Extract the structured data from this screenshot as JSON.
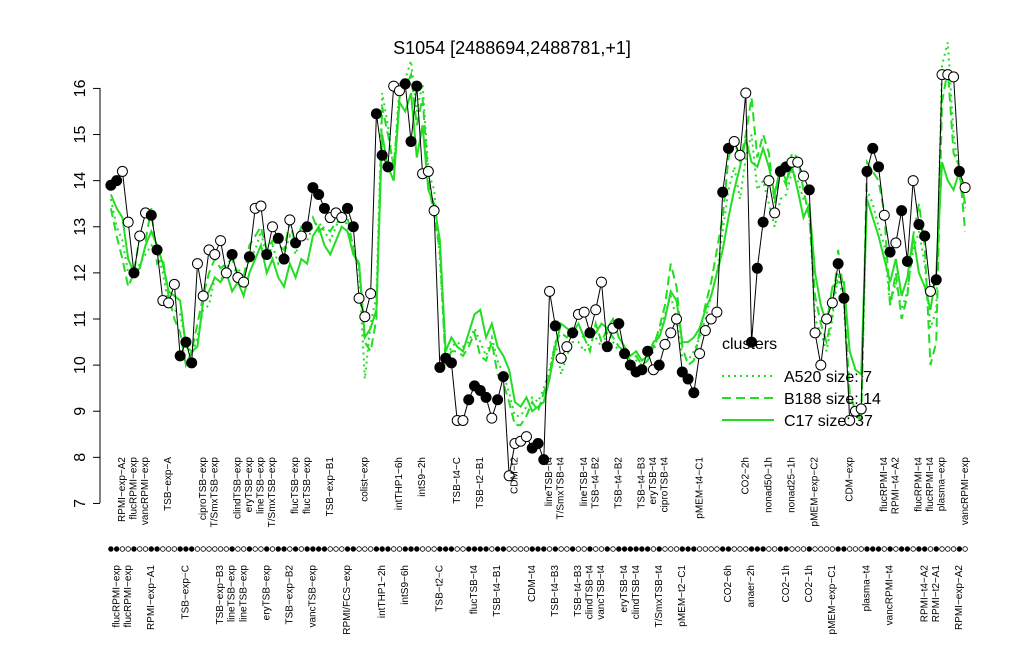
{
  "chart_data": {
    "type": "line",
    "title": "S1054 [2488694,2488781,+1]",
    "categories": [
      null,
      "flucRPMI−exp",
      "RPMI−exp−A2",
      "flucRPMI−exp",
      "flucRPMI−exp",
      null,
      "vancRPMI−exp",
      "RPMI−exp−A1",
      null,
      null,
      "TSB−exp−A",
      null,
      null,
      "TSB−exp−C",
      null,
      null,
      "ciproTSB−exp",
      null,
      "T/SmxTSB−exp",
      "TSB−exp−B3",
      null,
      "lineTSB−exp",
      "clindTSB−exp",
      "lineTSB−exp",
      "eryTSB−exp",
      null,
      "lineTSB−exp",
      "eryTSB−exp",
      "T/SmxTSB−exp",
      null,
      null,
      "TSB−exp−B2",
      "flucTSB−exp",
      null,
      "flucTSB−exp",
      "vancTSB−exp",
      null,
      null,
      "TSB−exp−B1",
      null,
      null,
      "RPMI/FCS−exp",
      null,
      null,
      "colist−exp",
      null,
      null,
      "intTHP1−2h",
      null,
      null,
      "intTHP1−6h",
      "intS9−6h",
      null,
      null,
      "intS9−2h",
      null,
      null,
      "TSB−t2−C",
      null,
      null,
      "TSB−t4−C",
      null,
      null,
      "flucTSB−t4",
      "TSB−t2−B1",
      null,
      null,
      "TSB−t4−B1",
      null,
      null,
      "CDM−t2",
      null,
      null,
      "CDM−t4",
      null,
      null,
      "lineTSB−t4",
      "TSB−t4−B3",
      "T/SmxTSB−t4",
      null,
      null,
      "TSB−t4−B3",
      "lineTSB−t4",
      "clindTSB−t4",
      "TSB−t4−B2",
      "vancTSB−t4",
      null,
      null,
      "TSB−t4−B2",
      "eryTSB−t4",
      null,
      "clindTSB−t4",
      "TSB−t4−B3",
      null,
      "eryTSB−t4",
      "T/SmxTSB−t4",
      "ciproTSB−t4",
      null,
      null,
      "pMEM−t2−C1",
      null,
      null,
      "pMEM−t4−C1",
      null,
      null,
      null,
      null,
      "CO2−6h",
      null,
      null,
      "CO2−2h",
      "anaer−2h",
      null,
      null,
      "nonad50−1h",
      null,
      null,
      "CO2−1h",
      "nonad25−1h",
      null,
      null,
      "CO2−1h",
      "pMEM−exp−C2",
      null,
      null,
      "pMEM−exp−C1",
      null,
      null,
      "CDM−exp",
      null,
      null,
      "plasma−t4",
      null,
      null,
      "flucRPMI−t4",
      "vancRPMI−t4",
      "RPMI−t4−A2",
      null,
      null,
      null,
      "flucRPMI−t4",
      "RPMI−t4−A2",
      "flucRPMI−t4",
      "RPMI−t2−A1",
      "plasma−exp",
      null,
      null,
      "RPMI−exp−A2",
      "vancRPMI−exp"
    ],
    "series": [
      {
        "color": "#000000",
        "values": [
          13.9,
          14.0,
          14.2,
          13.1,
          12.0,
          12.8,
          13.3,
          13.25,
          12.5,
          11.4,
          11.35,
          11.75,
          10.2,
          10.5,
          10.05,
          12.2,
          11.5,
          12.5,
          12.4,
          12.7,
          12.0,
          12.4,
          11.9,
          11.8,
          12.35,
          13.4,
          13.45,
          12.4,
          13.0,
          12.75,
          12.3,
          13.15,
          12.65,
          12.8,
          13.0,
          13.85,
          13.7,
          13.4,
          13.2,
          13.3,
          13.2,
          13.4,
          13.0,
          11.45,
          11.05,
          11.55,
          15.45,
          14.55,
          14.3,
          16.05,
          15.95,
          16.1,
          14.85,
          16.05,
          14.15,
          14.2,
          13.35,
          9.95,
          10.15,
          10.05,
          8.8,
          8.8,
          9.25,
          9.55,
          9.45,
          9.3,
          8.85,
          9.25,
          9.75,
          7.6,
          8.3,
          8.35,
          8.45,
          8.2,
          8.3,
          7.95,
          11.6,
          10.85,
          10.15,
          10.4,
          10.7,
          11.1,
          11.15,
          10.7,
          11.2,
          11.8,
          10.4,
          10.8,
          10.9,
          10.25,
          10.0,
          9.85,
          9.9,
          10.3,
          9.9,
          10.0,
          10.45,
          10.7,
          11.0,
          9.85,
          9.7,
          9.4,
          10.25,
          10.75,
          11.0,
          11.15,
          13.75,
          14.7,
          14.85,
          14.55,
          15.9,
          10.5,
          12.1,
          13.1,
          14.0,
          13.3,
          14.2,
          14.3,
          14.4,
          14.4,
          14.1,
          13.8,
          10.7,
          10.0,
          11.0,
          11.35,
          12.2,
          11.45,
          8.8,
          9.0,
          9.05,
          14.2,
          14.7,
          14.3,
          13.25,
          12.45,
          12.65,
          13.35,
          12.25,
          14.0,
          13.05,
          12.8,
          11.6,
          11.85,
          16.3,
          16.3,
          16.25,
          14.2,
          13.85
        ],
        "filled": [
          true,
          true,
          false,
          false,
          true,
          false,
          false,
          true,
          true,
          false,
          false,
          false,
          true,
          true,
          true,
          false,
          false,
          false,
          false,
          false,
          false,
          true,
          false,
          false,
          true,
          false,
          false,
          true,
          false,
          true,
          true,
          false,
          true,
          false,
          true,
          true,
          true,
          true,
          false,
          false,
          false,
          true,
          true,
          false,
          false,
          false,
          true,
          true,
          true,
          false,
          false,
          true,
          true,
          true,
          false,
          false,
          false,
          true,
          true,
          true,
          false,
          false,
          true,
          true,
          true,
          true,
          false,
          true,
          true,
          false,
          false,
          false,
          false,
          true,
          true,
          true,
          false,
          true,
          false,
          false,
          true,
          false,
          false,
          true,
          false,
          false,
          true,
          false,
          true,
          true,
          true,
          true,
          true,
          true,
          false,
          true,
          false,
          false,
          false,
          true,
          true,
          true,
          false,
          false,
          false,
          false,
          true,
          true,
          false,
          false,
          false,
          true,
          true,
          true,
          false,
          false,
          true,
          true,
          false,
          false,
          false,
          true,
          false,
          false,
          false,
          false,
          true,
          true,
          false,
          false,
          false,
          true,
          true,
          true,
          false,
          true,
          false,
          true,
          true,
          false,
          true,
          true,
          false,
          true,
          false,
          false,
          false,
          true,
          false
        ]
      },
      {
        "name": "A520 size: 7",
        "color": "#22dd22",
        "style": "dotted",
        "values": [
          13.6,
          13.0,
          12.7,
          12.0,
          11.9,
          12.2,
          12.4,
          12.6,
          12.5,
          12.0,
          11.3,
          11.2,
          11.1,
          10.5,
          10.2,
          10.6,
          11.2,
          11.3,
          11.9,
          11.8,
          12.2,
          12.0,
          12.1,
          11.9,
          12.3,
          12.5,
          12.9,
          12.3,
          12.6,
          12.2,
          12.4,
          12.8,
          12.4,
          12.8,
          12.7,
          13.0,
          13.1,
          12.9,
          12.7,
          13.0,
          13.3,
          13.0,
          12.6,
          12.0,
          9.7,
          10.9,
          11.5,
          15.9,
          15.2,
          14.2,
          16.1,
          16.2,
          16.6,
          15.5,
          16.1,
          14.2,
          13.8,
          12.3,
          10.1,
          10.4,
          10.5,
          10.4,
          10.5,
          10.8,
          10.5,
          10.2,
          10.6,
          10.1,
          9.8,
          9.4,
          8.9,
          8.9,
          9.1,
          9.3,
          9.2,
          9.5,
          9.9,
          10.5,
          9.8,
          10.2,
          10.5,
          10.5,
          10.3,
          10.5,
          10.6,
          10.4,
          10.7,
          10.5,
          10.3,
          10.2,
          10.0,
          10.1,
          10.0,
          10.1,
          10.3,
          10.7,
          11.1,
          11.5,
          11.0,
          10.2,
          10.1,
          10.3,
          10.6,
          11.0,
          11.5,
          12.0,
          12.9,
          13.8,
          14.3,
          13.6,
          14.5,
          15.0,
          13.8,
          14.0,
          13.5,
          13.0,
          13.6,
          13.7,
          14.2,
          14.0,
          13.6,
          13.4,
          11.0,
          10.7,
          10.3,
          11.0,
          12.0,
          11.3,
          9.2,
          8.9,
          8.8,
          13.8,
          13.5,
          13.0,
          12.6,
          11.3,
          11.8,
          11.2,
          11.6,
          12.5,
          12.9,
          12.2,
          10.8,
          11.2,
          16.5,
          17.0,
          15.0,
          14.1,
          13.4
        ]
      },
      {
        "name": "B188 size: 14",
        "color": "#22dd22",
        "style": "dashed",
        "values": [
          13.4,
          12.8,
          12.3,
          11.7,
          12.0,
          12.8,
          12.7,
          13.4,
          12.2,
          12.3,
          11.5,
          11.0,
          10.7,
          10.0,
          10.3,
          10.9,
          11.5,
          12.0,
          12.3,
          12.1,
          12.2,
          12.3,
          12.0,
          11.9,
          12.6,
          12.8,
          13.0,
          12.5,
          12.7,
          12.6,
          12.5,
          13.1,
          12.6,
          13.0,
          12.9,
          13.2,
          12.9,
          13.0,
          12.9,
          13.1,
          13.1,
          13.2,
          12.5,
          12.2,
          10.5,
          10.3,
          11.0,
          15.6,
          15.0,
          14.3,
          15.8,
          16.0,
          16.3,
          15.2,
          15.8,
          14.0,
          13.2,
          12.5,
          10.0,
          10.3,
          10.3,
          10.2,
          10.4,
          10.7,
          10.2,
          10.1,
          10.5,
          9.8,
          9.6,
          9.2,
          8.7,
          8.7,
          8.9,
          9.2,
          9.0,
          9.4,
          9.8,
          10.5,
          10.7,
          10.6,
          10.8,
          10.7,
          10.6,
          10.3,
          10.9,
          10.5,
          10.8,
          10.6,
          10.4,
          10.3,
          10.1,
          10.2,
          10.0,
          10.1,
          10.4,
          10.8,
          11.3,
          12.2,
          11.7,
          10.4,
          10.0,
          10.1,
          10.7,
          11.3,
          11.8,
          12.5,
          13.2,
          14.5,
          14.9,
          14.4,
          15.0,
          15.8,
          14.5,
          15.0,
          14.6,
          13.5,
          14.2,
          13.9,
          14.6,
          14.5,
          13.8,
          13.2,
          11.5,
          10.9,
          10.5,
          11.1,
          12.5,
          11.5,
          9.4,
          9.0,
          8.8,
          14.4,
          14.2,
          14.0,
          13.3,
          11.3,
          12.0,
          11.0,
          11.5,
          12.8,
          13.5,
          12.6,
          10.0,
          10.5,
          15.7,
          16.4,
          14.6,
          14.3,
          12.9
        ]
      },
      {
        "name": "C17 size: 37",
        "color": "#22dd22",
        "style": "solid",
        "values": [
          13.7,
          13.4,
          13.2,
          12.3,
          12.0,
          12.1,
          12.6,
          12.9,
          12.6,
          12.2,
          11.6,
          11.5,
          11.4,
          10.4,
          10.3,
          10.4,
          11.4,
          11.6,
          11.9,
          11.8,
          12.0,
          11.6,
          11.8,
          11.5,
          12.0,
          12.3,
          12.6,
          12.0,
          12.3,
          11.9,
          11.7,
          12.2,
          11.9,
          12.3,
          12.2,
          12.8,
          13.0,
          12.6,
          12.4,
          12.7,
          13.0,
          12.9,
          12.4,
          12.2,
          10.6,
          10.8,
          11.2,
          15.0,
          14.3,
          14.0,
          15.7,
          15.5,
          15.9,
          14.5,
          15.2,
          13.8,
          13.5,
          12.7,
          10.3,
          10.6,
          10.4,
          10.3,
          10.7,
          11.1,
          11.2,
          10.6,
          10.9,
          10.4,
          10.2,
          9.9,
          9.2,
          9.1,
          9.3,
          9.0,
          9.1,
          9.2,
          9.7,
          10.4,
          10.9,
          10.8,
          10.7,
          10.9,
          10.6,
          10.8,
          10.7,
          10.9,
          10.8,
          11.0,
          10.6,
          10.4,
          10.2,
          10.3,
          10.1,
          10.2,
          10.5,
          10.6,
          11.0,
          11.6,
          11.4,
          10.5,
          10.5,
          10.6,
          10.8,
          11.2,
          11.5,
          12.0,
          12.5,
          13.2,
          13.8,
          14.3,
          14.9,
          14.4,
          14.3,
          14.7,
          14.3,
          13.7,
          14.3,
          14.0,
          14.3,
          13.8,
          13.2,
          13.5,
          12.0,
          11.3,
          10.9,
          11.7,
          11.8,
          11.8,
          10.3,
          9.9,
          9.8,
          13.6,
          13.2,
          12.8,
          12.3,
          11.8,
          12.3,
          11.5,
          11.9,
          12.8,
          12.0,
          11.7,
          11.2,
          12.0,
          14.4,
          14.0,
          13.8,
          14.2,
          13.5
        ]
      }
    ],
    "ylim": [
      6.75,
      17.05
    ],
    "yticks": [
      7,
      8,
      9,
      10,
      11,
      12,
      13,
      14,
      15,
      16
    ],
    "legend_title": "clusters",
    "legend_position": "right"
  }
}
